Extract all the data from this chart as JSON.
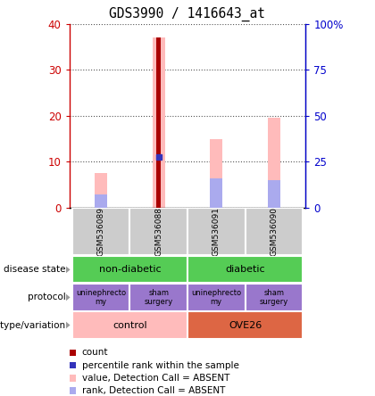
{
  "title": "GDS3990 / 1416643_at",
  "samples": [
    "GSM536089",
    "GSM536088",
    "GSM536091",
    "GSM536090"
  ],
  "count_values": [
    0,
    37,
    0,
    0
  ],
  "percentile_values": [
    0,
    11,
    0,
    0
  ],
  "pink_bar_values": [
    7.5,
    37,
    15,
    19.5
  ],
  "blue_bar_values": [
    3.0,
    0,
    6.5,
    6.0
  ],
  "ylim_left": [
    0,
    40
  ],
  "ylim_right": [
    0,
    100
  ],
  "left_ticks": [
    0,
    10,
    20,
    30,
    40
  ],
  "right_ticks": [
    0,
    25,
    50,
    75,
    100
  ],
  "left_tick_labels": [
    "0",
    "10",
    "20",
    "30",
    "40"
  ],
  "right_tick_labels": [
    "0",
    "25",
    "50",
    "75",
    "100%"
  ],
  "sample_bg_color": "#cccccc",
  "disease_state_labels": [
    "non-diabetic",
    "diabetic"
  ],
  "disease_state_color": "#55cc55",
  "protocol_labels": [
    "uninephrecto\nmy",
    "sham\nsurgery",
    "uninephrecto\nmy",
    "sham\nsurgery"
  ],
  "protocol_color": "#9977cc",
  "genotype_labels": [
    "control",
    "OVE26"
  ],
  "genotype_color_control": "#ffbbbb",
  "genotype_color_ove26": "#dd6644",
  "red_bar_color": "#aa0000",
  "blue_bar_color": "#3333bb",
  "pink_bar_color": "#ffbbbb",
  "light_blue_color": "#aaaaee",
  "left_axis_color": "#cc0000",
  "right_axis_color": "#0000cc",
  "grid_color": "#555555",
  "arrow_color": "#999999"
}
